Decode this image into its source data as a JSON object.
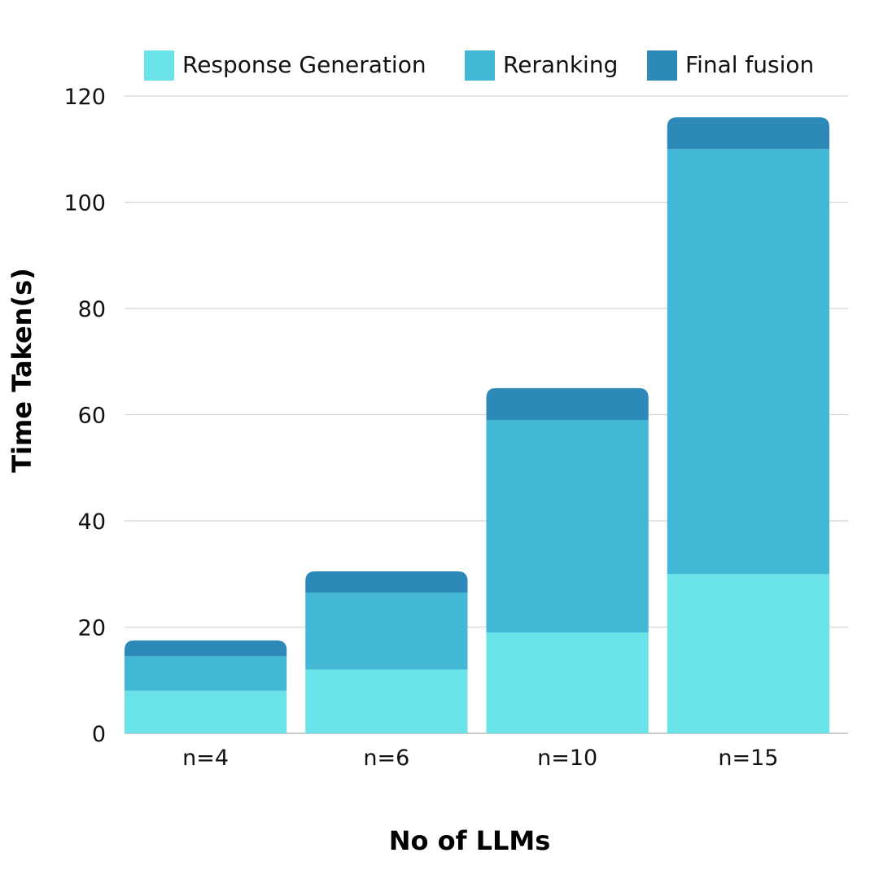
{
  "chart_data": {
    "type": "bar",
    "stacked": true,
    "categories": [
      "n=4",
      "n=6",
      "n=10",
      "n=15"
    ],
    "series": [
      {
        "name": "Response Generation",
        "color": "#6ae3e8",
        "values": [
          8,
          12,
          19,
          30
        ]
      },
      {
        "name": "Reranking",
        "color": "#43b7d6",
        "values": [
          6.5,
          14.5,
          40,
          80
        ]
      },
      {
        "name": "Final fusion",
        "color": "#2d8ab8",
        "values": [
          3,
          4,
          6,
          6
        ]
      }
    ],
    "xlabel": "No of LLMs",
    "ylabel": "Time Taken(s)",
    "ylim": [
      0,
      120
    ],
    "yticks": [
      0,
      20,
      40,
      60,
      80,
      100,
      120
    ],
    "grid": true,
    "legend_position": "top"
  }
}
